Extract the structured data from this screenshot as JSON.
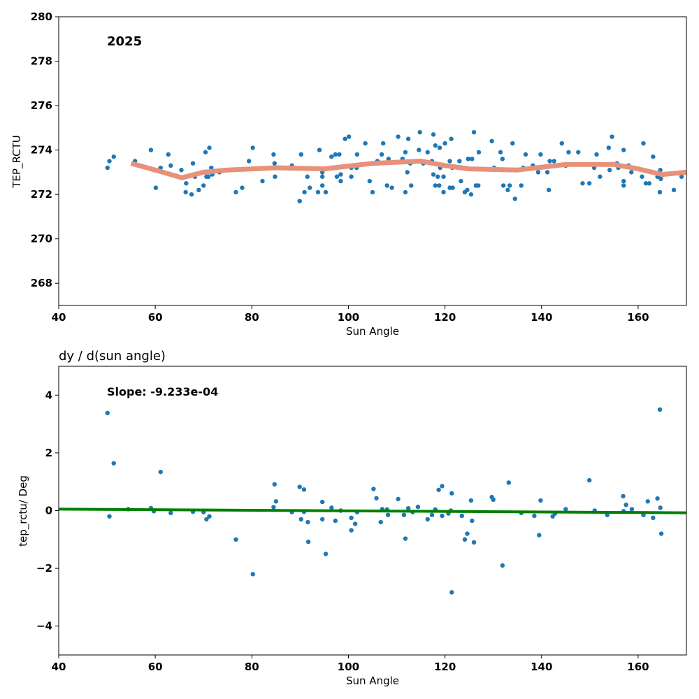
{
  "colors": {
    "points": "#1f77b4",
    "trend_top": "#e8917a",
    "fit_bottom": "#008000"
  },
  "chart_data": [
    {
      "type": "scatter",
      "title": "",
      "annotation": "2025",
      "xlabel": "Sun Angle",
      "ylabel": "TEP_RCTU",
      "xlim": [
        40,
        170
      ],
      "ylim": [
        267,
        280
      ],
      "xticks": [
        40,
        60,
        80,
        100,
        120,
        140,
        160
      ],
      "yticks": [
        268,
        270,
        272,
        274,
        276,
        278,
        280
      ],
      "grid": false,
      "series": [
        {
          "kind": "points",
          "points": [
            [
              50.1,
              273.2
            ],
            [
              50.5,
              273.5
            ],
            [
              51.4,
              273.7
            ],
            [
              55.8,
              273.5
            ],
            [
              59.1,
              274.0
            ],
            [
              59.7,
              273.1
            ],
            [
              60.1,
              272.3
            ],
            [
              61.1,
              273.2
            ],
            [
              62.7,
              273.8
            ],
            [
              63.2,
              273.3
            ],
            [
              65.4,
              273.1
            ],
            [
              66.3,
              272.1
            ],
            [
              66.4,
              272.5
            ],
            [
              67.8,
              273.4
            ],
            [
              68.2,
              272.8
            ],
            [
              69.0,
              272.2
            ],
            [
              67.5,
              272.0
            ],
            [
              70.0,
              272.4
            ],
            [
              70.4,
              273.9
            ],
            [
              70.6,
              272.8
            ],
            [
              71.0,
              272.8
            ],
            [
              71.2,
              274.1
            ],
            [
              71.6,
              273.2
            ],
            [
              71.8,
              272.9
            ],
            [
              73.3,
              273.0
            ],
            [
              76.7,
              272.1
            ],
            [
              78.0,
              272.3
            ],
            [
              79.4,
              273.5
            ],
            [
              80.2,
              274.1
            ],
            [
              82.2,
              272.6
            ],
            [
              84.5,
              273.8
            ],
            [
              84.7,
              273.4
            ],
            [
              84.8,
              272.8
            ],
            [
              88.3,
              273.3
            ],
            [
              89.9,
              271.7
            ],
            [
              90.2,
              273.8
            ],
            [
              90.9,
              272.1
            ],
            [
              91.5,
              272.8
            ],
            [
              92.0,
              272.3
            ],
            [
              94.0,
              274.0
            ],
            [
              93.7,
              272.1
            ],
            [
              94.6,
              272.4
            ],
            [
              94.6,
              272.8
            ],
            [
              94.6,
              273.0
            ],
            [
              95.3,
              272.1
            ],
            [
              96.5,
              273.7
            ],
            [
              97.3,
              273.8
            ],
            [
              97.6,
              272.8
            ],
            [
              98.1,
              273.8
            ],
            [
              98.4,
              272.6
            ],
            [
              98.4,
              272.9
            ],
            [
              99.3,
              274.5
            ],
            [
              100.1,
              274.6
            ],
            [
              100.6,
              272.8
            ],
            [
              100.6,
              273.2
            ],
            [
              101.7,
              273.2
            ],
            [
              101.8,
              273.8
            ],
            [
              103.5,
              274.3
            ],
            [
              104.4,
              272.6
            ],
            [
              105.0,
              272.1
            ],
            [
              106.0,
              273.5
            ],
            [
              106.9,
              273.8
            ],
            [
              107.2,
              274.3
            ],
            [
              108.0,
              272.4
            ],
            [
              108.3,
              273.6
            ],
            [
              109.0,
              272.3
            ],
            [
              110.3,
              274.6
            ],
            [
              111.2,
              273.6
            ],
            [
              111.8,
              272.1
            ],
            [
              111.8,
              273.9
            ],
            [
              112.2,
              273.0
            ],
            [
              112.4,
              274.5
            ],
            [
              112.8,
              273.4
            ],
            [
              113.0,
              272.4
            ],
            [
              113.6,
              273.5
            ],
            [
              114.6,
              274.0
            ],
            [
              114.8,
              274.8
            ],
            [
              115.5,
              273.4
            ],
            [
              116.4,
              273.9
            ],
            [
              117.3,
              273.5
            ],
            [
              117.6,
              272.9
            ],
            [
              118.0,
              272.4
            ],
            [
              117.6,
              274.7
            ],
            [
              118.0,
              274.2
            ],
            [
              118.5,
              272.8
            ],
            [
              118.8,
              272.4
            ],
            [
              118.9,
              274.1
            ],
            [
              119.0,
              273.2
            ],
            [
              119.7,
              272.8
            ],
            [
              119.7,
              272.1
            ],
            [
              120.0,
              274.3
            ],
            [
              121.0,
              272.3
            ],
            [
              121.0,
              273.5
            ],
            [
              121.3,
              274.5
            ],
            [
              121.5,
              273.2
            ],
            [
              121.6,
              272.3
            ],
            [
              123.0,
              273.5
            ],
            [
              123.3,
              272.6
            ],
            [
              123.8,
              273.2
            ],
            [
              124.1,
              272.1
            ],
            [
              124.6,
              272.2
            ],
            [
              124.8,
              273.6
            ],
            [
              125.4,
              272.0
            ],
            [
              125.6,
              273.6
            ],
            [
              126.0,
              274.8
            ],
            [
              126.4,
              272.4
            ],
            [
              126.9,
              272.4
            ],
            [
              127.0,
              273.9
            ],
            [
              129.7,
              274.4
            ],
            [
              130.2,
              273.2
            ],
            [
              131.5,
              273.9
            ],
            [
              131.9,
              273.6
            ],
            [
              132.1,
              272.4
            ],
            [
              133.0,
              272.2
            ],
            [
              133.4,
              272.4
            ],
            [
              134.0,
              274.3
            ],
            [
              134.5,
              271.8
            ],
            [
              135.8,
              272.4
            ],
            [
              136.2,
              273.2
            ],
            [
              136.7,
              273.8
            ],
            [
              138.2,
              273.3
            ],
            [
              139.3,
              273.0
            ],
            [
              139.8,
              273.8
            ],
            [
              141.2,
              273.0
            ],
            [
              141.5,
              272.2
            ],
            [
              141.7,
              273.5
            ],
            [
              142.6,
              273.5
            ],
            [
              144.2,
              274.3
            ],
            [
              145.0,
              273.3
            ],
            [
              145.6,
              273.9
            ],
            [
              147.6,
              273.9
            ],
            [
              148.5,
              272.5
            ],
            [
              149.9,
              272.5
            ],
            [
              150.9,
              273.2
            ],
            [
              151.4,
              273.8
            ],
            [
              152.1,
              272.8
            ],
            [
              153.9,
              274.1
            ],
            [
              154.1,
              273.1
            ],
            [
              154.6,
              274.6
            ],
            [
              155.6,
              273.4
            ],
            [
              155.9,
              273.2
            ],
            [
              157.0,
              274.0
            ],
            [
              157.0,
              272.6
            ],
            [
              157.0,
              272.4
            ],
            [
              158.0,
              273.3
            ],
            [
              158.6,
              273.0
            ],
            [
              160.8,
              272.8
            ],
            [
              161.1,
              274.3
            ],
            [
              161.6,
              272.5
            ],
            [
              162.3,
              272.5
            ],
            [
              163.1,
              273.7
            ],
            [
              164.0,
              272.8
            ],
            [
              164.4,
              272.8
            ],
            [
              164.5,
              272.1
            ],
            [
              164.6,
              273.1
            ],
            [
              164.7,
              272.7
            ],
            [
              167.4,
              272.2
            ],
            [
              169.0,
              272.8
            ]
          ]
        },
        {
          "kind": "line",
          "points": [
            [
              55,
              273.4
            ],
            [
              60,
              273.1
            ],
            [
              65.5,
              272.75
            ],
            [
              70,
              273.0
            ],
            [
              75,
              273.1
            ],
            [
              85,
              273.2
            ],
            [
              95,
              273.15
            ],
            [
              105,
              273.4
            ],
            [
              115,
              273.5
            ],
            [
              120,
              273.3
            ],
            [
              125,
              273.15
            ],
            [
              135,
              273.1
            ],
            [
              145,
              273.35
            ],
            [
              155,
              273.35
            ],
            [
              160,
              273.15
            ],
            [
              165,
              272.9
            ],
            [
              170,
              273.0
            ]
          ]
        }
      ]
    },
    {
      "type": "scatter",
      "title": "dy / d(sun angle)",
      "annotation": "Slope: -9.233e-04",
      "xlabel": "Sun Angle",
      "ylabel": "tep_rctu/ Deg",
      "xlim": [
        40,
        170
      ],
      "ylim": [
        -5,
        5
      ],
      "xticks": [
        40,
        60,
        80,
        100,
        120,
        140,
        160
      ],
      "yticks": [
        -4,
        -2,
        0,
        2,
        4
      ],
      "ytick_labels": [
        "−4",
        "−2",
        "0",
        "2",
        "4"
      ],
      "grid": false,
      "series": [
        {
          "kind": "points",
          "points": [
            [
              50.1,
              3.38
            ],
            [
              50.5,
              -0.2
            ],
            [
              51.4,
              1.64
            ],
            [
              54.4,
              0.05
            ],
            [
              59.1,
              0.09
            ],
            [
              59.7,
              -0.02
            ],
            [
              61.1,
              1.34
            ],
            [
              63.2,
              -0.08
            ],
            [
              67.8,
              -0.04
            ],
            [
              70.0,
              -0.05
            ],
            [
              70.6,
              -0.3
            ],
            [
              71.2,
              -0.2
            ],
            [
              76.7,
              -1.0
            ],
            [
              80.2,
              -2.2
            ],
            [
              84.5,
              0.12
            ],
            [
              84.7,
              0.91
            ],
            [
              85.0,
              0.32
            ],
            [
              88.3,
              -0.05
            ],
            [
              89.9,
              0.82
            ],
            [
              90.2,
              -0.3
            ],
            [
              90.8,
              0.73
            ],
            [
              90.8,
              -0.04
            ],
            [
              91.6,
              -0.4
            ],
            [
              91.7,
              -1.08
            ],
            [
              94.6,
              0.3
            ],
            [
              94.6,
              -0.3
            ],
            [
              95.3,
              -1.5
            ],
            [
              96.5,
              0.1
            ],
            [
              97.3,
              -0.35
            ],
            [
              98.4,
              0.0
            ],
            [
              100.6,
              -0.25
            ],
            [
              100.6,
              -0.68
            ],
            [
              101.4,
              -0.46
            ],
            [
              101.8,
              -0.05
            ],
            [
              105.2,
              0.75
            ],
            [
              105.8,
              0.43
            ],
            [
              106.7,
              -0.4
            ],
            [
              107.0,
              0.05
            ],
            [
              108.0,
              0.04
            ],
            [
              108.2,
              -0.15
            ],
            [
              110.3,
              0.4
            ],
            [
              111.5,
              -0.15
            ],
            [
              111.8,
              -0.97
            ],
            [
              112.4,
              0.08
            ],
            [
              113.3,
              -0.05
            ],
            [
              114.4,
              0.13
            ],
            [
              116.4,
              -0.3
            ],
            [
              117.3,
              -0.15
            ],
            [
              118.0,
              0.04
            ],
            [
              118.7,
              0.72
            ],
            [
              119.4,
              0.85
            ],
            [
              119.4,
              -0.18
            ],
            [
              120.7,
              -0.1
            ],
            [
              121.2,
              0.0
            ],
            [
              121.4,
              0.6
            ],
            [
              121.4,
              -2.83
            ],
            [
              123.5,
              -0.18
            ],
            [
              124.1,
              -1.0
            ],
            [
              124.6,
              -0.8
            ],
            [
              125.4,
              0.35
            ],
            [
              125.6,
              -0.35
            ],
            [
              126.0,
              -1.1
            ],
            [
              129.7,
              0.47
            ],
            [
              130.0,
              0.38
            ],
            [
              131.9,
              -1.9
            ],
            [
              133.2,
              0.97
            ],
            [
              135.8,
              -0.08
            ],
            [
              138.5,
              -0.18
            ],
            [
              139.5,
              -0.85
            ],
            [
              139.8,
              0.35
            ],
            [
              142.3,
              -0.2
            ],
            [
              142.8,
              -0.1
            ],
            [
              145.0,
              0.05
            ],
            [
              149.9,
              1.05
            ],
            [
              151.0,
              0.0
            ],
            [
              153.6,
              -0.15
            ],
            [
              156.9,
              0.5
            ],
            [
              157.0,
              -0.02
            ],
            [
              157.5,
              0.2
            ],
            [
              158.7,
              0.05
            ],
            [
              161.1,
              -0.15
            ],
            [
              162.0,
              0.32
            ],
            [
              163.1,
              -0.25
            ],
            [
              164.0,
              0.42
            ],
            [
              164.5,
              3.5
            ],
            [
              164.6,
              0.1
            ],
            [
              164.8,
              -0.8
            ]
          ]
        },
        {
          "kind": "line",
          "points": [
            [
              40,
              0.05
            ],
            [
              170,
              -0.075
            ]
          ]
        }
      ]
    }
  ]
}
